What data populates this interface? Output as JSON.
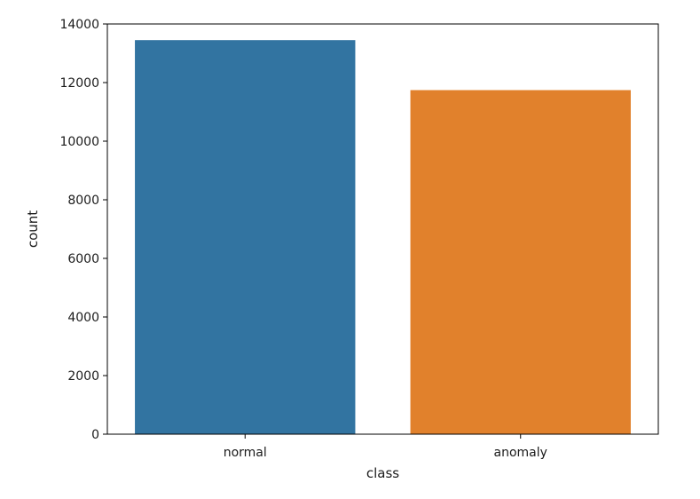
{
  "chart_data": {
    "type": "bar",
    "title": "",
    "xlabel": "class",
    "ylabel": "count",
    "categories": [
      "normal",
      "anomaly"
    ],
    "values": [
      13449,
      11743
    ],
    "colors": [
      "#3274a1",
      "#e1812c"
    ],
    "ylim": [
      0,
      14000
    ],
    "yticks": [
      0,
      2000,
      4000,
      6000,
      8000,
      10000,
      12000,
      14000
    ],
    "ytick_labels": [
      "0",
      "2000",
      "4000",
      "6000",
      "8000",
      "10000",
      "12000",
      "14000"
    ],
    "grid": false,
    "legend": false
  }
}
